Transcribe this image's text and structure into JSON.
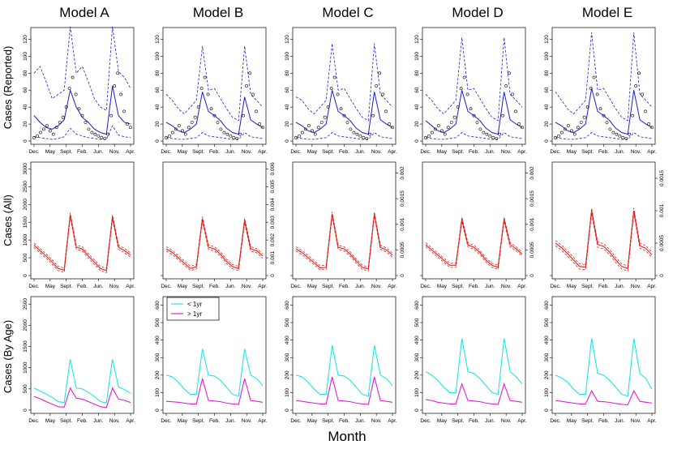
{
  "figure": {
    "column_titles": [
      "Model A",
      "Model B",
      "Model C",
      "Model D",
      "Model E"
    ],
    "row_labels": [
      "Cases (Reported)",
      "Cases (All)",
      "Cases (By Age)"
    ],
    "x_axis_label": "Month",
    "month_ticks": [
      "Dec.",
      "May",
      "Sept.",
      "Feb.",
      "Jun.",
      "Nov.",
      "Apr."
    ]
  },
  "legend": {
    "entries": [
      {
        "label": "< 1yr",
        "color": "#22e5e5"
      },
      {
        "label": "> 1yr",
        "color": "#e020d0"
      }
    ]
  },
  "colors": {
    "reported_fit": "#1d1dcc",
    "reported_band": "#1d1dcc",
    "observed": "#000000",
    "all_cases": "#e02020",
    "under_1yr": "#22e5e5",
    "over_1yr": "#e020d0"
  },
  "chart_data": [
    {
      "type": "line",
      "panel": "A-reported",
      "ylim": [
        0,
        130
      ],
      "yticks": [
        0,
        20,
        40,
        60,
        80,
        100,
        120
      ],
      "mean": [
        30,
        22,
        16,
        14,
        18,
        25,
        60,
        40,
        28,
        22,
        14,
        10,
        8,
        65,
        30,
        22,
        20
      ],
      "upper": [
        80,
        88,
        70,
        50,
        55,
        60,
        135,
        80,
        88,
        70,
        50,
        40,
        36,
        135,
        82,
        75,
        62
      ],
      "lower": [
        5,
        4,
        3,
        2,
        3,
        5,
        15,
        8,
        6,
        4,
        3,
        2,
        2,
        18,
        7,
        5,
        4
      ],
      "observed": [
        4,
        6,
        10,
        14,
        18,
        12,
        8,
        16,
        22,
        28,
        40,
        62,
        75,
        55,
        38,
        30,
        22,
        14,
        10,
        8,
        6,
        4,
        3,
        8,
        30,
        65,
        80,
        55,
        35,
        20,
        16
      ]
    },
    {
      "type": "line",
      "panel": "B-reported",
      "ylim": [
        0,
        130
      ],
      "yticks": [
        0,
        20,
        40,
        60,
        80,
        100,
        120
      ],
      "mean": [
        22,
        18,
        12,
        10,
        14,
        20,
        58,
        35,
        30,
        24,
        15,
        10,
        8,
        52,
        25,
        20,
        16
      ],
      "upper": [
        55,
        48,
        38,
        32,
        40,
        48,
        112,
        60,
        62,
        50,
        38,
        28,
        24,
        112,
        55,
        48,
        40
      ],
      "lower": [
        4,
        3,
        2,
        2,
        3,
        4,
        10,
        6,
        5,
        4,
        3,
        2,
        2,
        10,
        5,
        4,
        3
      ],
      "observed": [
        4,
        6,
        10,
        14,
        18,
        12,
        8,
        16,
        22,
        28,
        40,
        62,
        75,
        55,
        38,
        30,
        22,
        14,
        10,
        8,
        6,
        4,
        3,
        8,
        30,
        65,
        80,
        55,
        35,
        20,
        16
      ]
    },
    {
      "type": "line",
      "panel": "C-reported",
      "ylim": [
        0,
        130
      ],
      "yticks": [
        0,
        20,
        40,
        60,
        80,
        100,
        120
      ],
      "mean": [
        22,
        18,
        12,
        10,
        14,
        20,
        60,
        35,
        30,
        24,
        15,
        10,
        8,
        58,
        25,
        20,
        16
      ],
      "upper": [
        52,
        48,
        38,
        32,
        40,
        48,
        115,
        60,
        62,
        50,
        38,
        28,
        24,
        115,
        55,
        48,
        40
      ],
      "lower": [
        4,
        3,
        2,
        2,
        3,
        4,
        10,
        6,
        5,
        4,
        3,
        2,
        2,
        10,
        5,
        4,
        3
      ],
      "observed": [
        4,
        6,
        10,
        14,
        18,
        12,
        8,
        16,
        22,
        28,
        40,
        62,
        75,
        55,
        38,
        30,
        22,
        14,
        10,
        8,
        6,
        4,
        3,
        8,
        30,
        65,
        80,
        55,
        35,
        20,
        16
      ]
    },
    {
      "type": "line",
      "panel": "D-reported",
      "ylim": [
        0,
        130
      ],
      "yticks": [
        0,
        20,
        40,
        60,
        80,
        100,
        120
      ],
      "mean": [
        24,
        18,
        12,
        10,
        14,
        20,
        60,
        35,
        30,
        24,
        15,
        10,
        8,
        58,
        25,
        20,
        16
      ],
      "upper": [
        55,
        48,
        38,
        32,
        40,
        48,
        122,
        60,
        62,
        50,
        38,
        28,
        24,
        122,
        55,
        48,
        40
      ],
      "lower": [
        4,
        3,
        2,
        2,
        3,
        4,
        10,
        6,
        5,
        4,
        3,
        2,
        2,
        10,
        5,
        4,
        3
      ],
      "observed": [
        4,
        6,
        10,
        14,
        18,
        12,
        8,
        16,
        22,
        28,
        40,
        62,
        75,
        55,
        38,
        30,
        22,
        14,
        10,
        8,
        6,
        4,
        3,
        8,
        30,
        65,
        80,
        55,
        35,
        20,
        16
      ]
    },
    {
      "type": "line",
      "panel": "E-reported",
      "ylim": [
        0,
        130
      ],
      "yticks": [
        0,
        20,
        40,
        60,
        80,
        100,
        120
      ],
      "mean": [
        22,
        18,
        12,
        10,
        14,
        20,
        62,
        35,
        30,
        24,
        15,
        10,
        8,
        60,
        25,
        20,
        16
      ],
      "upper": [
        58,
        48,
        38,
        32,
        40,
        48,
        128,
        60,
        62,
        50,
        38,
        28,
        24,
        128,
        55,
        48,
        40
      ],
      "lower": [
        4,
        3,
        2,
        2,
        3,
        4,
        10,
        6,
        5,
        4,
        3,
        2,
        2,
        10,
        5,
        4,
        3
      ],
      "observed": [
        4,
        6,
        10,
        14,
        18,
        12,
        8,
        16,
        22,
        28,
        40,
        62,
        75,
        55,
        38,
        30,
        22,
        14,
        10,
        8,
        6,
        4,
        3,
        8,
        30,
        65,
        80,
        55,
        35,
        20,
        16
      ]
    },
    {
      "type": "line",
      "panel": "A-all",
      "ylim": [
        0,
        3100
      ],
      "yticks": [
        0,
        500,
        1000,
        1500,
        2000,
        2500,
        3000
      ],
      "values": [
        850,
        700,
        550,
        380,
        200,
        150,
        1700,
        800,
        750,
        550,
        380,
        200,
        140,
        1650,
        800,
        700,
        580
      ],
      "band": 60
    },
    {
      "type": "line",
      "panel": "B-all",
      "ylim": [
        0,
        0.0062
      ],
      "yticks": [
        0,
        0.001,
        0.002,
        0.003,
        0.004,
        0.005,
        0.006
      ],
      "values": [
        0.0015,
        0.0013,
        0.001,
        0.0007,
        0.0004,
        0.0005,
        0.0032,
        0.0016,
        0.0015,
        0.0012,
        0.0008,
        0.0005,
        0.0004,
        0.0031,
        0.0015,
        0.0014,
        0.0011
      ],
      "band": 0.00012
    },
    {
      "type": "line",
      "panel": "C-all",
      "ylim": [
        0,
        0.00215
      ],
      "yticks": [
        0,
        0.0005,
        0.001,
        0.0015,
        0.002
      ],
      "values": [
        0.00052,
        0.00045,
        0.00035,
        0.00025,
        0.00015,
        0.00016,
        0.0012,
        0.00055,
        0.00052,
        0.00042,
        0.00028,
        0.00016,
        0.00013,
        0.0012,
        0.00055,
        0.0005,
        0.0004
      ],
      "band": 4e-05
    },
    {
      "type": "line",
      "panel": "D-all",
      "ylim": [
        0,
        0.00215
      ],
      "yticks": [
        0,
        0.0005,
        0.001,
        0.0015,
        0.002
      ],
      "values": [
        0.0006,
        0.0005,
        0.0004,
        0.0003,
        0.0002,
        0.0002,
        0.0011,
        0.0006,
        0.00055,
        0.00045,
        0.0003,
        0.0002,
        0.00016,
        0.0011,
        0.0006,
        0.00052,
        0.00042
      ],
      "band": 4e-05
    },
    {
      "type": "line",
      "panel": "E-all",
      "ylim": [
        0,
        0.0017
      ],
      "yticks": [
        0,
        0.0005,
        0.001,
        0.0015
      ],
      "values": [
        0.0005,
        0.00043,
        0.00034,
        0.00024,
        0.00014,
        0.00013,
        0.001,
        0.00048,
        0.00045,
        0.00036,
        0.00024,
        0.00014,
        0.00011,
        0.001,
        0.00046,
        0.00042,
        0.00032
      ],
      "band": 4e-05
    },
    {
      "type": "line",
      "panel": "A-byage",
      "ylim": [
        0,
        2600
      ],
      "yticks": [
        0,
        500,
        1000,
        1500,
        2000,
        2500
      ],
      "under_1yr": [
        520,
        450,
        380,
        300,
        200,
        180,
        1200,
        520,
        500,
        420,
        320,
        200,
        170,
        1200,
        550,
        480,
        400
      ],
      "over_1yr": [
        320,
        270,
        200,
        140,
        80,
        70,
        520,
        280,
        260,
        200,
        140,
        80,
        60,
        520,
        260,
        230,
        180
      ]
    },
    {
      "type": "line",
      "panel": "B-byage",
      "ylim": [
        0,
        630
      ],
      "yticks": [
        0,
        100,
        200,
        300,
        400,
        500,
        600
      ],
      "under_1yr": [
        200,
        190,
        160,
        120,
        90,
        90,
        350,
        200,
        195,
        170,
        130,
        90,
        80,
        350,
        200,
        180,
        140
      ],
      "over_1yr": [
        50,
        48,
        45,
        40,
        35,
        35,
        180,
        55,
        52,
        48,
        40,
        35,
        32,
        180,
        55,
        50,
        45
      ]
    },
    {
      "type": "line",
      "panel": "C-byage",
      "ylim": [
        0,
        630
      ],
      "yticks": [
        0,
        100,
        200,
        300,
        400,
        500,
        600
      ],
      "under_1yr": [
        200,
        190,
        160,
        120,
        90,
        90,
        370,
        200,
        195,
        170,
        130,
        90,
        80,
        370,
        200,
        180,
        140
      ],
      "over_1yr": [
        55,
        50,
        45,
        40,
        35,
        35,
        190,
        55,
        52,
        48,
        40,
        35,
        32,
        190,
        55,
        50,
        45
      ]
    },
    {
      "type": "line",
      "panel": "D-byage",
      "ylim": [
        0,
        630
      ],
      "yticks": [
        0,
        100,
        200,
        300,
        400,
        500,
        600
      ],
      "under_1yr": [
        220,
        200,
        170,
        130,
        100,
        100,
        410,
        220,
        210,
        180,
        140,
        100,
        90,
        410,
        220,
        190,
        150
      ],
      "over_1yr": [
        60,
        55,
        45,
        40,
        35,
        35,
        150,
        55,
        52,
        48,
        40,
        35,
        32,
        150,
        55,
        50,
        45
      ]
    },
    {
      "type": "line",
      "panel": "E-byage",
      "ylim": [
        0,
        630
      ],
      "yticks": [
        0,
        100,
        200,
        300,
        400,
        500,
        600
      ],
      "under_1yr": [
        200,
        185,
        160,
        120,
        90,
        90,
        410,
        210,
        200,
        170,
        130,
        90,
        80,
        410,
        210,
        180,
        120
      ],
      "over_1yr": [
        55,
        50,
        45,
        40,
        35,
        35,
        110,
        50,
        48,
        44,
        38,
        33,
        30,
        110,
        50,
        45,
        40
      ]
    }
  ]
}
